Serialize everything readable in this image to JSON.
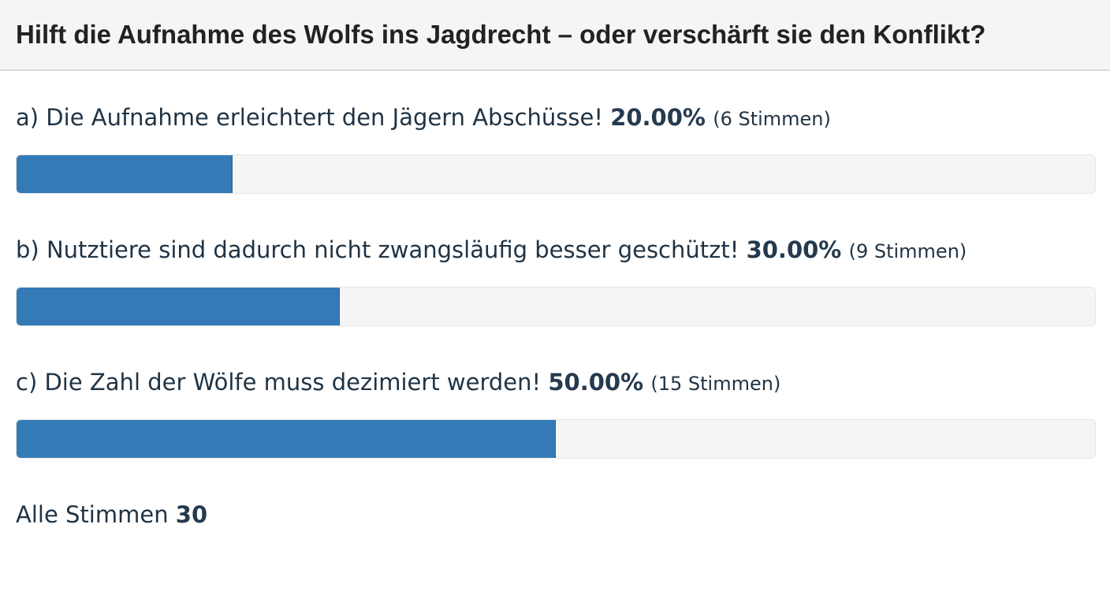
{
  "poll": {
    "title": "Hilft die Aufnahme des Wolfs ins Jagdrecht – oder verschärft sie den Konflikt?",
    "options": [
      {
        "text": "a) Die Aufnahme erleichtert den Jägern Abschüsse!",
        "percent_label": "20.00%",
        "votes_label": "(6 Stimmen)",
        "percent": 20
      },
      {
        "text": "b) Nutztiere sind dadurch nicht zwangsläufig besser geschützt!",
        "percent_label": "30.00%",
        "votes_label": "(9 Stimmen)",
        "percent": 30
      },
      {
        "text": "c) Die Zahl der Wölfe muss dezimiert werden!",
        "percent_label": "50.00%",
        "votes_label": "(15 Stimmen)",
        "percent": 50
      }
    ],
    "total_label": "Alle Stimmen",
    "total_votes": "30"
  },
  "colors": {
    "bar_fill": "#337ab7",
    "bar_track": "#f5f5f5",
    "header_bg": "#f5f5f5"
  }
}
